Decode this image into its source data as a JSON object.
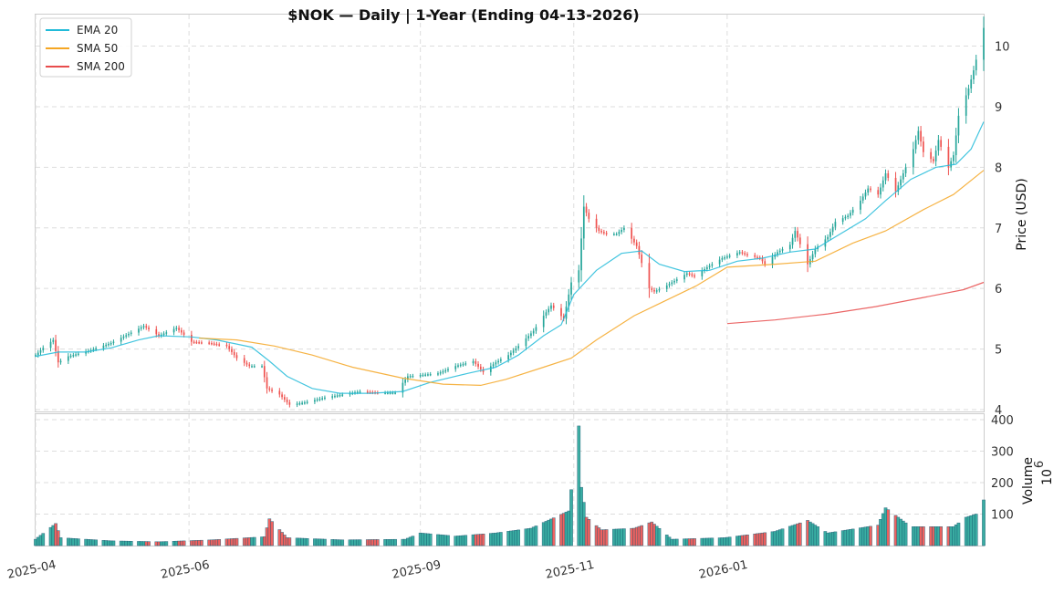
{
  "chart_data": {
    "type": "candlestick",
    "title": "$NOK  —  Daily  |  1-Year (Ending 04-13-2026)",
    "legend": {
      "placement": "top-left",
      "entries": [
        {
          "name": "EMA 20",
          "color": "#22bbd9"
        },
        {
          "name": "SMA 50",
          "color": "#f5a623"
        },
        {
          "name": "SMA 200",
          "color": "#e84c4c"
        }
      ]
    },
    "colors": {
      "up": "#26a69a",
      "down": "#ef5350",
      "grid": "#dddddd"
    },
    "price_panel": {
      "ylabel": "Price (USD)",
      "ylim": [
        3.97,
        10.52
      ],
      "yticks": [
        4,
        5,
        6,
        7,
        8,
        9,
        10
      ]
    },
    "volume_panel": {
      "ylabel": "Volume",
      "yunit_base": "10",
      "yunit_exp": "6",
      "ylim": [
        0,
        400
      ],
      "yticks": [
        100,
        200,
        300,
        400
      ]
    },
    "xaxis": {
      "range": [
        "2025-04-01",
        "2026-04-13"
      ],
      "ticks": [
        {
          "date": "2025-04-01",
          "label": "2025-04"
        },
        {
          "date": "2025-06-01",
          "label": "2025-06"
        },
        {
          "date": "2025-09-01",
          "label": "2025-09"
        },
        {
          "date": "2025-11-01",
          "label": "2025-11"
        },
        {
          "date": "2026-01-01",
          "label": "2026-01"
        }
      ]
    },
    "price_keypoints": [
      [
        "2025-04-01",
        4.9
      ],
      [
        "2025-04-04",
        5.02
      ],
      [
        "2025-04-08",
        5.15
      ],
      [
        "2025-04-10",
        4.78
      ],
      [
        "2025-04-14",
        4.88
      ],
      [
        "2025-04-22",
        4.97
      ],
      [
        "2025-05-01",
        5.1
      ],
      [
        "2025-05-08",
        5.25
      ],
      [
        "2025-05-14",
        5.38
      ],
      [
        "2025-05-20",
        5.22
      ],
      [
        "2025-05-27",
        5.35
      ],
      [
        "2025-06-02",
        5.12
      ],
      [
        "2025-06-09",
        5.1
      ],
      [
        "2025-06-16",
        5.05
      ],
      [
        "2025-06-20",
        4.85
      ],
      [
        "2025-06-25",
        4.72
      ],
      [
        "2025-06-30",
        4.72
      ],
      [
        "2025-07-02",
        4.35
      ],
      [
        "2025-07-07",
        4.25
      ],
      [
        "2025-07-11",
        4.08
      ],
      [
        "2025-07-17",
        4.12
      ],
      [
        "2025-07-25",
        4.2
      ],
      [
        "2025-08-01",
        4.25
      ],
      [
        "2025-08-08",
        4.3
      ],
      [
        "2025-08-15",
        4.28
      ],
      [
        "2025-08-22",
        4.28
      ],
      [
        "2025-08-27",
        4.55
      ],
      [
        "2025-09-03",
        4.58
      ],
      [
        "2025-09-08",
        4.6
      ],
      [
        "2025-09-15",
        4.72
      ],
      [
        "2025-09-22",
        4.8
      ],
      [
        "2025-09-26",
        4.62
      ],
      [
        "2025-10-01",
        4.78
      ],
      [
        "2025-10-06",
        4.9
      ],
      [
        "2025-10-10",
        5.05
      ],
      [
        "2025-10-16",
        5.3
      ],
      [
        "2025-10-20",
        5.55
      ],
      [
        "2025-10-23",
        5.72
      ],
      [
        "2025-10-28",
        5.5
      ],
      [
        "2025-10-31",
        6.1
      ],
      [
        "2025-11-03",
        6.3
      ],
      [
        "2025-11-05",
        7.35
      ],
      [
        "2025-11-07",
        7.15
      ],
      [
        "2025-11-11",
        6.95
      ],
      [
        "2025-11-14",
        6.9
      ],
      [
        "2025-11-18",
        6.9
      ],
      [
        "2025-11-21",
        7.0
      ],
      [
        "2025-11-26",
        6.7
      ],
      [
        "2025-12-01",
        6.0
      ],
      [
        "2025-12-03",
        5.95
      ],
      [
        "2025-12-08",
        6.05
      ],
      [
        "2025-12-12",
        6.15
      ],
      [
        "2025-12-16",
        6.25
      ],
      [
        "2025-12-19",
        6.2
      ],
      [
        "2025-12-24",
        6.35
      ],
      [
        "2025-12-30",
        6.5
      ],
      [
        "2026-01-06",
        6.6
      ],
      [
        "2026-01-09",
        6.55
      ],
      [
        "2026-01-14",
        6.5
      ],
      [
        "2026-01-16",
        6.4
      ],
      [
        "2026-01-21",
        6.6
      ],
      [
        "2026-01-26",
        6.72
      ],
      [
        "2026-01-28",
        6.95
      ],
      [
        "2026-02-02",
        6.4
      ],
      [
        "2026-02-05",
        6.65
      ],
      [
        "2026-02-10",
        6.85
      ],
      [
        "2026-02-13",
        7.1
      ],
      [
        "2026-02-18",
        7.2
      ],
      [
        "2026-02-23",
        7.45
      ],
      [
        "2026-02-26",
        7.65
      ],
      [
        "2026-03-02",
        7.55
      ],
      [
        "2026-03-05",
        7.9
      ],
      [
        "2026-03-09",
        7.6
      ],
      [
        "2026-03-12",
        7.9
      ],
      [
        "2026-03-16",
        8.3
      ],
      [
        "2026-03-18",
        8.6
      ],
      [
        "2026-03-20",
        8.25
      ],
      [
        "2026-03-24",
        8.1
      ],
      [
        "2026-03-26",
        8.45
      ],
      [
        "2026-03-30",
        8.0
      ],
      [
        "2026-04-01",
        8.2
      ],
      [
        "2026-04-03",
        8.85
      ],
      [
        "2026-04-07",
        9.3
      ],
      [
        "2026-04-09",
        9.6
      ],
      [
        "2026-04-13",
        10.3
      ]
    ],
    "ema20": [
      [
        "2025-04-01",
        4.88
      ],
      [
        "2025-04-10",
        4.95
      ],
      [
        "2025-04-21",
        4.95
      ],
      [
        "2025-05-01",
        5.02
      ],
      [
        "2025-05-12",
        5.15
      ],
      [
        "2025-05-20",
        5.22
      ],
      [
        "2025-06-02",
        5.2
      ],
      [
        "2025-06-12",
        5.15
      ],
      [
        "2025-06-26",
        5.03
      ],
      [
        "2025-07-03",
        4.8
      ],
      [
        "2025-07-10",
        4.55
      ],
      [
        "2025-07-20",
        4.35
      ],
      [
        "2025-07-31",
        4.27
      ],
      [
        "2025-08-12",
        4.27
      ],
      [
        "2025-08-25",
        4.3
      ],
      [
        "2025-09-05",
        4.45
      ],
      [
        "2025-09-20",
        4.6
      ],
      [
        "2025-10-01",
        4.7
      ],
      [
        "2025-10-10",
        4.9
      ],
      [
        "2025-10-20",
        5.22
      ],
      [
        "2025-10-27",
        5.4
      ],
      [
        "2025-11-01",
        5.9
      ],
      [
        "2025-11-10",
        6.3
      ],
      [
        "2025-11-20",
        6.58
      ],
      [
        "2025-11-28",
        6.62
      ],
      [
        "2025-12-05",
        6.4
      ],
      [
        "2025-12-15",
        6.28
      ],
      [
        "2025-12-25",
        6.3
      ],
      [
        "2026-01-05",
        6.45
      ],
      [
        "2026-01-15",
        6.5
      ],
      [
        "2026-01-26",
        6.6
      ],
      [
        "2026-02-05",
        6.65
      ],
      [
        "2026-02-15",
        6.9
      ],
      [
        "2026-02-25",
        7.15
      ],
      [
        "2026-03-05",
        7.45
      ],
      [
        "2026-03-15",
        7.8
      ],
      [
        "2026-03-25",
        8.0
      ],
      [
        "2026-04-02",
        8.05
      ],
      [
        "2026-04-08",
        8.3
      ],
      [
        "2026-04-13",
        8.75
      ]
    ],
    "sma50": [
      [
        "2025-06-05",
        5.18
      ],
      [
        "2025-06-20",
        5.15
      ],
      [
        "2025-07-05",
        5.05
      ],
      [
        "2025-07-20",
        4.9
      ],
      [
        "2025-08-05",
        4.7
      ],
      [
        "2025-08-25",
        4.52
      ],
      [
        "2025-09-10",
        4.42
      ],
      [
        "2025-09-25",
        4.4
      ],
      [
        "2025-10-05",
        4.5
      ],
      [
        "2025-10-20",
        4.7
      ],
      [
        "2025-10-31",
        4.85
      ],
      [
        "2025-11-10",
        5.15
      ],
      [
        "2025-11-25",
        5.55
      ],
      [
        "2025-12-05",
        5.75
      ],
      [
        "2025-12-20",
        6.05
      ],
      [
        "2026-01-01",
        6.35
      ],
      [
        "2026-01-20",
        6.4
      ],
      [
        "2026-02-05",
        6.45
      ],
      [
        "2026-02-20",
        6.75
      ],
      [
        "2026-03-05",
        6.95
      ],
      [
        "2026-03-20",
        7.3
      ],
      [
        "2026-04-01",
        7.55
      ],
      [
        "2026-04-13",
        7.95
      ]
    ],
    "sma200": [
      [
        "2026-01-01",
        5.42
      ],
      [
        "2026-01-20",
        5.48
      ],
      [
        "2026-02-10",
        5.58
      ],
      [
        "2026-03-01",
        5.7
      ],
      [
        "2026-03-20",
        5.85
      ],
      [
        "2026-04-05",
        5.98
      ],
      [
        "2026-04-13",
        6.1
      ]
    ],
    "volume_keypoints": [
      [
        "2025-04-01",
        20
      ],
      [
        "2025-04-09",
        70
      ],
      [
        "2025-04-11",
        25
      ],
      [
        "2025-05-01",
        15
      ],
      [
        "2025-05-20",
        12
      ],
      [
        "2025-06-10",
        18
      ],
      [
        "2025-07-01",
        28
      ],
      [
        "2025-07-03",
        85
      ],
      [
        "2025-07-10",
        25
      ],
      [
        "2025-08-01",
        18
      ],
      [
        "2025-08-26",
        20
      ],
      [
        "2025-09-01",
        40
      ],
      [
        "2025-09-15",
        30
      ],
      [
        "2025-10-01",
        40
      ],
      [
        "2025-10-15",
        55
      ],
      [
        "2025-10-30",
        110
      ],
      [
        "2025-11-03",
        380
      ],
      [
        "2025-11-04",
        185
      ],
      [
        "2025-11-06",
        90
      ],
      [
        "2025-11-12",
        50
      ],
      [
        "2025-11-25",
        55
      ],
      [
        "2025-12-02",
        75
      ],
      [
        "2025-12-10",
        20
      ],
      [
        "2025-12-31",
        25
      ],
      [
        "2026-01-20",
        45
      ],
      [
        "2026-02-02",
        80
      ],
      [
        "2026-02-10",
        40
      ],
      [
        "2026-03-02",
        65
      ],
      [
        "2026-03-05",
        120
      ],
      [
        "2026-03-15",
        60
      ],
      [
        "2026-04-01",
        60
      ],
      [
        "2026-04-06",
        90
      ],
      [
        "2026-04-10",
        100
      ],
      [
        "2026-04-13",
        145
      ]
    ]
  }
}
